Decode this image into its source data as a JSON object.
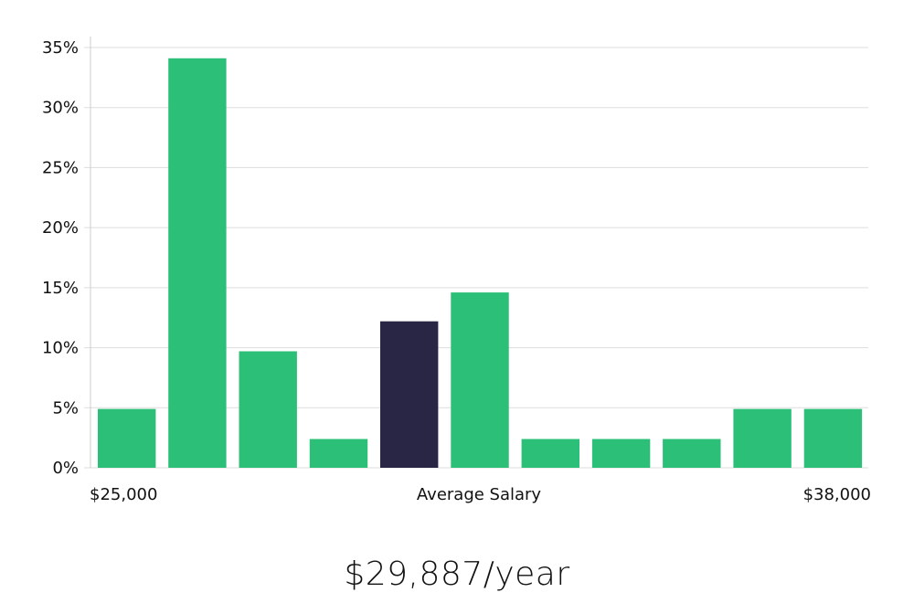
{
  "chart_data": {
    "type": "bar",
    "title": "",
    "xlabel": "Average Salary",
    "ylabel": "",
    "x_range_labels": {
      "min": "$25,000",
      "max": "$38,000"
    },
    "ylim": [
      0,
      35
    ],
    "yticks": [
      0,
      5,
      10,
      15,
      20,
      25,
      30,
      35
    ],
    "ytick_labels": [
      "0%",
      "5%",
      "10%",
      "15%",
      "20%",
      "25%",
      "30%",
      "35%"
    ],
    "grid": true,
    "legend": "none",
    "values": [
      4.9,
      34.1,
      9.7,
      2.4,
      12.2,
      14.6,
      2.4,
      2.4,
      2.4,
      4.9,
      4.9
    ],
    "highlight_index": 4,
    "colors": {
      "bar": "#2bbf77",
      "highlight": "#282545",
      "grid": "#dddddd"
    }
  },
  "summary": {
    "average_salary": "$29,887/year"
  }
}
